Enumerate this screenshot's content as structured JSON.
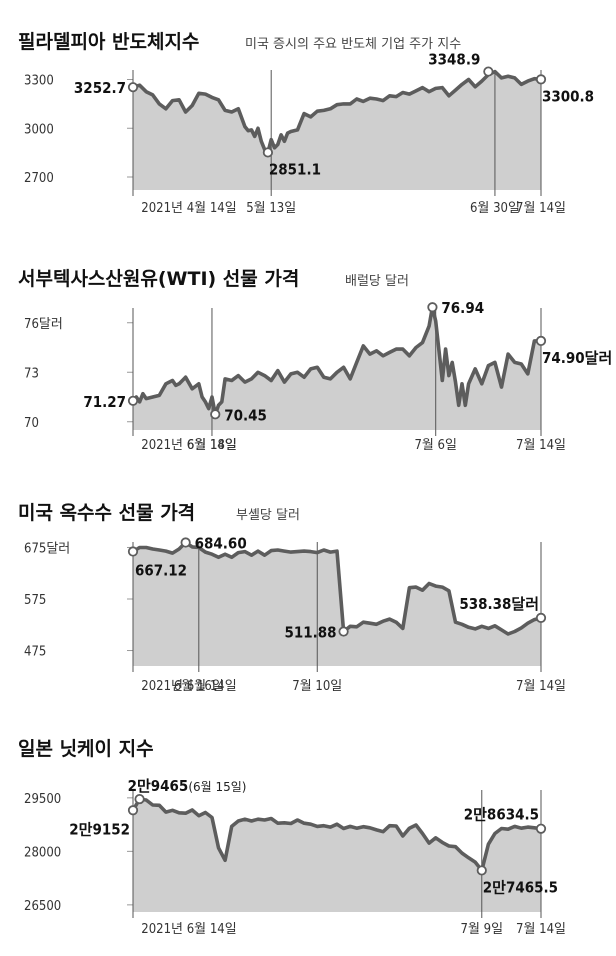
{
  "chart_data": [
    {
      "type": "area",
      "title": "필라델피아 반도체지수",
      "subtitle": "미국 증시의 주요 반도체 기업 주가 지수",
      "ylim": [
        2620,
        3420
      ],
      "yticks": [
        {
          "value": 3300,
          "label": "3300"
        },
        {
          "value": 3000,
          "label": "3000"
        },
        {
          "value": 2700,
          "label": "2700"
        }
      ],
      "xlim": [
        0,
        62
      ],
      "xticks": [
        {
          "x": 0,
          "label": "2021년 4월 14일"
        },
        {
          "x": 21,
          "label": "5월 13일"
        },
        {
          "x": 55,
          "label": "6월 30일"
        },
        {
          "x": 62,
          "label": "7월 14일"
        }
      ],
      "series": [
        {
          "x": [
            0,
            1,
            2,
            3,
            4,
            5,
            6,
            7,
            8,
            9,
            10,
            11,
            12,
            13,
            14,
            15,
            16,
            17,
            17.5,
            18,
            18.5,
            19,
            19.5,
            20,
            20.5,
            21,
            21.5,
            22,
            22.5,
            23,
            23.5,
            24,
            25,
            26,
            27,
            28,
            29,
            30,
            31,
            32,
            33,
            34,
            35,
            36,
            37,
            38,
            39,
            40,
            41,
            42,
            43,
            44,
            45,
            46,
            47,
            48,
            49,
            50,
            51,
            52,
            53,
            54,
            55,
            56,
            57,
            58,
            59,
            60,
            61,
            62
          ],
          "y": [
            3252.7,
            3265,
            3225,
            3205,
            3150,
            3120,
            3170,
            3175,
            3100,
            3140,
            3215,
            3210,
            3190,
            3175,
            3110,
            3100,
            3120,
            3010,
            2985,
            2990,
            2950,
            3000,
            2920,
            2870,
            2851.1,
            2930,
            2880,
            2900,
            2960,
            2920,
            2970,
            2980,
            2990,
            3090,
            3070,
            3105,
            3110,
            3120,
            3145,
            3150,
            3150,
            3180,
            3165,
            3185,
            3180,
            3170,
            3200,
            3195,
            3220,
            3210,
            3230,
            3250,
            3225,
            3245,
            3250,
            3200,
            3235,
            3270,
            3300,
            3255,
            3290,
            3330,
            3348.9,
            3310,
            3320,
            3310,
            3270,
            3290,
            3305,
            3300.8
          ]
        }
      ],
      "annotations": [
        {
          "x": 0,
          "y": 3252.7,
          "label": "3252.7",
          "anchor": "left"
        },
        {
          "x": 20.5,
          "y": 2851.1,
          "label": "2851.1",
          "anchor": "below"
        },
        {
          "x": 54,
          "y": 3348.9,
          "label": "3348.9",
          "anchor": "above-left"
        },
        {
          "x": 62,
          "y": 3300.8,
          "label": "3300.8",
          "anchor": "below"
        }
      ]
    },
    {
      "type": "area",
      "title": "서부텍사스산원유(WTI) 선물 가격",
      "subtitle": "배럴당 달러",
      "ylim": [
        69.5,
        77.5
      ],
      "yticks": [
        {
          "value": 76,
          "label": "76달러"
        },
        {
          "value": 73,
          "label": "73"
        },
        {
          "value": 70,
          "label": "70"
        }
      ],
      "xlim": [
        0,
        62
      ],
      "xticks": [
        {
          "x": 0,
          "label": "2021년 6월 14일"
        },
        {
          "x": 12,
          "label": "6월 18일"
        },
        {
          "x": 46,
          "label": "7월 6일"
        },
        {
          "x": 62,
          "label": "7월 14일"
        }
      ],
      "series": [
        {
          "x": [
            0,
            0.5,
            1,
            1.5,
            2,
            3,
            4,
            5,
            6,
            6.5,
            7,
            7.5,
            8,
            9,
            10,
            10.5,
            11,
            11.5,
            12,
            12.5,
            13,
            13.5,
            14,
            15,
            16,
            17,
            18,
            19,
            20,
            21,
            22,
            23,
            24,
            25,
            26,
            27,
            28,
            29,
            30,
            31,
            32,
            33,
            34,
            35,
            36,
            37,
            38,
            39,
            40,
            41,
            42,
            43,
            44,
            44.5,
            45,
            45.5,
            46,
            47,
            47.5,
            48,
            48.5,
            49,
            49.5,
            50,
            50.5,
            51,
            52,
            53,
            54,
            55,
            56,
            57,
            58,
            59,
            60,
            61,
            62
          ],
          "y": [
            71.27,
            71.5,
            71.2,
            71.7,
            71.4,
            71.5,
            71.6,
            72.3,
            72.5,
            72.2,
            72.3,
            72.5,
            72.7,
            72.0,
            72.3,
            71.5,
            71.2,
            70.8,
            71.5,
            70.45,
            71.0,
            71.2,
            72.6,
            72.5,
            72.8,
            72.4,
            72.6,
            73.0,
            72.8,
            72.5,
            73.1,
            72.4,
            72.9,
            73.0,
            72.7,
            73.2,
            73.3,
            72.7,
            72.6,
            73.0,
            73.3,
            72.6,
            73.6,
            74.6,
            74.1,
            74.3,
            74.0,
            74.2,
            74.4,
            74.4,
            74.0,
            74.5,
            74.8,
            75.3,
            75.8,
            76.94,
            76.1,
            72.5,
            74.4,
            72.8,
            73.6,
            72.4,
            71.0,
            72.3,
            71.0,
            72.3,
            73.2,
            72.3,
            73.4,
            73.6,
            72.1,
            74.1,
            73.6,
            73.5,
            72.9,
            74.9,
            74.9
          ]
        }
      ],
      "annotations": [
        {
          "x": 0,
          "y": 71.27,
          "label": "71.27",
          "anchor": "left"
        },
        {
          "x": 12.5,
          "y": 70.45,
          "label": "70.45",
          "anchor": "right"
        },
        {
          "x": 45.5,
          "y": 76.94,
          "label": "76.94",
          "anchor": "right"
        },
        {
          "x": 62,
          "y": 74.9,
          "label": "74.90달러",
          "anchor": "below"
        }
      ]
    },
    {
      "type": "area",
      "title": "미국 옥수수 선물 가격",
      "subtitle": "부셸당 달러",
      "ylim": [
        445,
        705
      ],
      "yticks": [
        {
          "value": 675,
          "label": "675달러"
        },
        {
          "value": 575,
          "label": "575"
        },
        {
          "value": 475,
          "label": "475"
        }
      ],
      "xlim": [
        0,
        62
      ],
      "xticks": [
        {
          "x": 0,
          "label": "2021년 6월 14일"
        },
        {
          "x": 10,
          "label": "6월 16일"
        },
        {
          "x": 28,
          "label": "7월 10일"
        },
        {
          "x": 62,
          "label": "7월 14일"
        }
      ],
      "series": [
        {
          "x": [
            0,
            1,
            2,
            3,
            4,
            5,
            6,
            7,
            8,
            9,
            10,
            11,
            12,
            13,
            14,
            15,
            16,
            17,
            18,
            19,
            20,
            21,
            22,
            23,
            24,
            25,
            26,
            27,
            28,
            29,
            30,
            31,
            32,
            33,
            34,
            35,
            36,
            37,
            38,
            39,
            40,
            41,
            42,
            43,
            44,
            45,
            46,
            47,
            48,
            49,
            50,
            51,
            52,
            53,
            54,
            55,
            56,
            57,
            58,
            59,
            60,
            61,
            62
          ],
          "y": [
            667.12,
            675,
            675,
            672,
            670,
            668,
            664,
            672,
            684.6,
            676,
            675,
            666,
            662,
            656,
            662,
            656,
            665,
            667,
            660,
            668,
            660,
            669,
            670,
            668,
            666,
            667,
            668,
            667,
            665,
            670,
            666,
            668,
            511.88,
            522,
            521,
            530,
            528,
            526,
            532,
            536,
            530,
            518,
            597,
            598,
            592,
            605,
            600,
            598,
            591,
            530,
            526,
            520,
            517,
            522,
            518,
            523,
            515,
            507,
            512,
            519,
            528,
            535,
            538.38
          ]
        }
      ],
      "annotations": [
        {
          "x": 0,
          "y": 667.12,
          "label": "667.12",
          "anchor": "below-right"
        },
        {
          "x": 8,
          "y": 684.6,
          "label": "684.60",
          "anchor": "right"
        },
        {
          "x": 32,
          "y": 511.88,
          "label": "511.88",
          "anchor": "left"
        },
        {
          "x": 62,
          "y": 538.38,
          "label": "538.38달러",
          "anchor": "above"
        }
      ]
    },
    {
      "type": "area",
      "title": "일본 닛케이 지수",
      "subtitle": "",
      "ylim": [
        26300,
        30000
      ],
      "yticks": [
        {
          "value": 29500,
          "label": "29500"
        },
        {
          "value": 28000,
          "label": "28000"
        },
        {
          "value": 26500,
          "label": "26500"
        }
      ],
      "xlim": [
        0,
        62
      ],
      "xticks": [
        {
          "x": 0,
          "label": "2021년 6월 14일"
        },
        {
          "x": 53,
          "label": "7월 9일"
        },
        {
          "x": 62,
          "label": "7월 14일"
        }
      ],
      "series": [
        {
          "x": [
            0,
            1,
            2,
            3,
            4,
            5,
            6,
            7,
            8,
            9,
            10,
            11,
            12,
            13,
            14,
            15,
            16,
            17,
            18,
            19,
            20,
            21,
            22,
            23,
            24,
            25,
            26,
            27,
            28,
            29,
            30,
            31,
            32,
            33,
            34,
            35,
            36,
            37,
            38,
            39,
            40,
            41,
            42,
            43,
            44,
            45,
            46,
            47,
            48,
            49,
            50,
            51,
            52,
            53,
            54,
            55,
            56,
            57,
            58,
            59,
            60,
            61,
            62
          ],
          "y": [
            29152,
            29465,
            29440,
            29300,
            29290,
            29100,
            29150,
            29080,
            29070,
            29160,
            29000,
            29090,
            28950,
            28100,
            27750,
            28700,
            28850,
            28900,
            28850,
            28900,
            28880,
            28920,
            28790,
            28800,
            28780,
            28880,
            28790,
            28760,
            28700,
            28720,
            28680,
            28760,
            28640,
            28700,
            28650,
            28690,
            28660,
            28600,
            28550,
            28720,
            28710,
            28430,
            28650,
            28740,
            28500,
            28230,
            28380,
            28250,
            28150,
            28130,
            27950,
            27820,
            27700,
            27465.5,
            28200,
            28500,
            28640,
            28620,
            28700,
            28650,
            28680,
            28660,
            28634.5
          ]
        }
      ],
      "annotations": [
        {
          "x": 0,
          "y": 29152,
          "label": "2만9152",
          "anchor": "below-left"
        },
        {
          "x": 1,
          "y": 29465,
          "label": "2만9465",
          "note": "(6월 15일)",
          "anchor": "above-right"
        },
        {
          "x": 53,
          "y": 27465.5,
          "label": "2만7465.5",
          "anchor": "below"
        },
        {
          "x": 62,
          "y": 28634.5,
          "label": "2만8634.5",
          "anchor": "above"
        }
      ]
    }
  ],
  "colors": {
    "line": "#5d5d5d",
    "area": "#cfcfcf",
    "marker_fill": "#ffffff",
    "text": "#111111",
    "background": "#ffffff"
  }
}
